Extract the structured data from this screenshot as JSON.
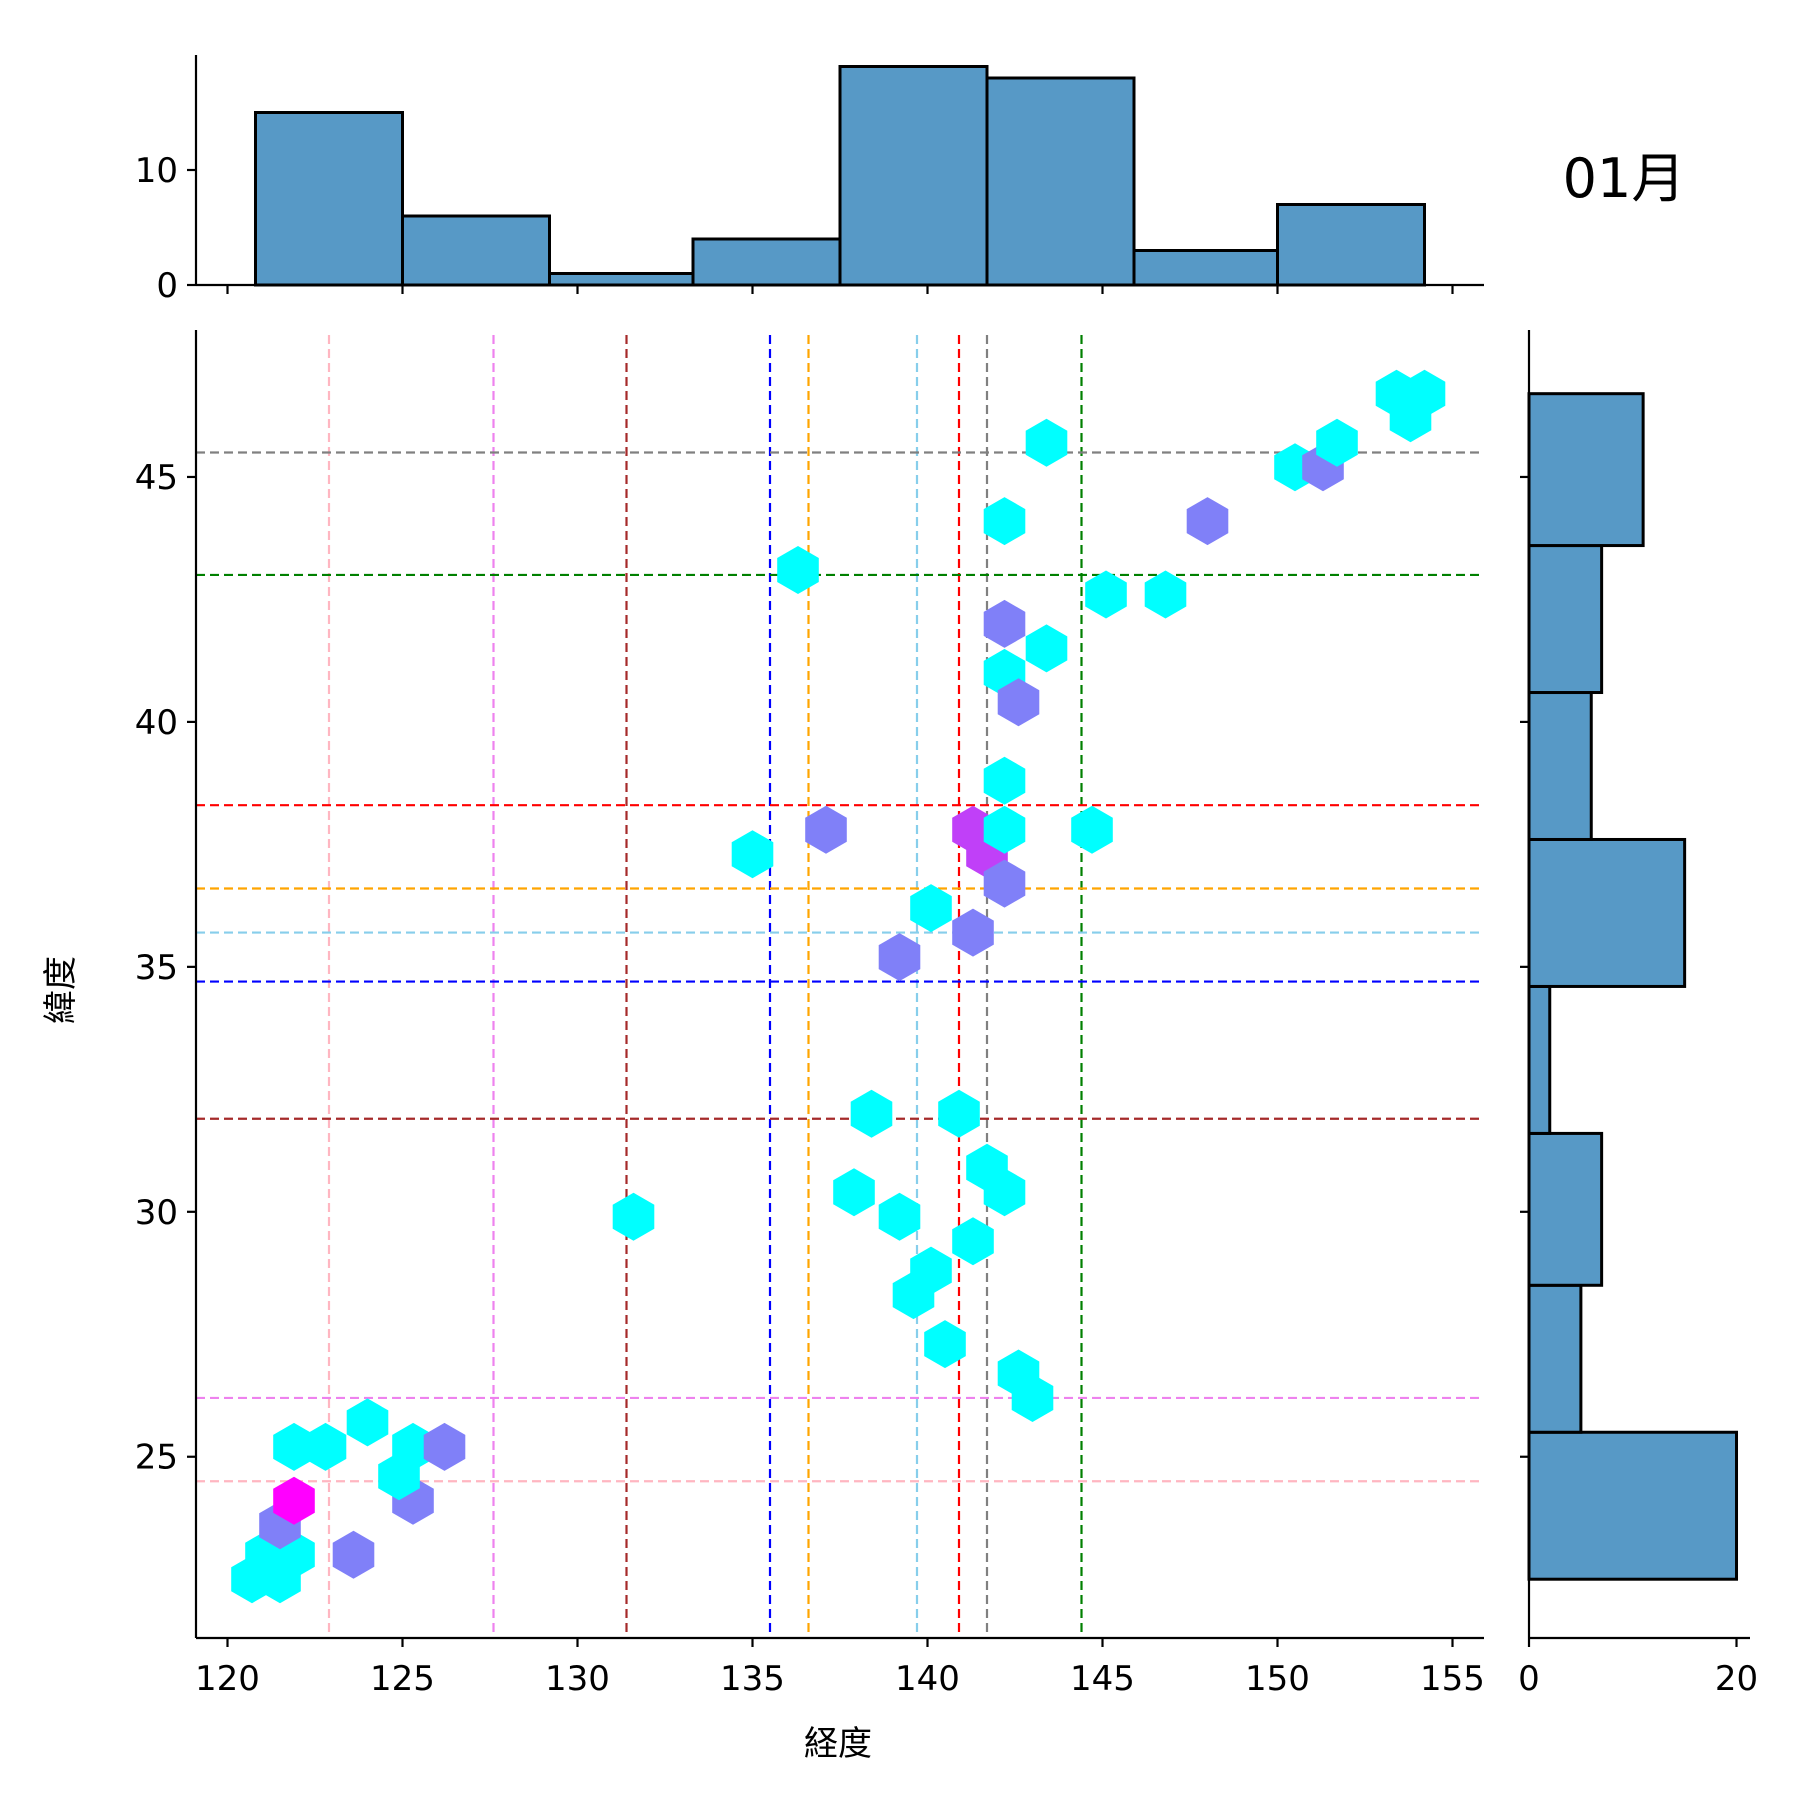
{
  "chart_data": {
    "type": "hexbin-jointplot",
    "title": "01月",
    "xlabel": "経度",
    "ylabel": "緯度",
    "xlim": [
      119.1,
      155.9
    ],
    "ylim": [
      21.3,
      48.0
    ],
    "xticks": [
      120,
      125,
      130,
      135,
      140,
      145,
      150,
      155
    ],
    "yticks": [
      25,
      30,
      35,
      40,
      45
    ],
    "colors": {
      "bar": "#5799c6",
      "hex_1": "#00ffff",
      "hex_2": "#8080f8",
      "hex_3": "#c040f8",
      "hex_4": "#ff00ff"
    },
    "hexbin_points": [
      {
        "x": 120.7,
        "y": 22.5,
        "count": 1
      },
      {
        "x": 121.5,
        "y": 22.5,
        "count": 1
      },
      {
        "x": 121.1,
        "y": 23.0,
        "count": 1
      },
      {
        "x": 121.9,
        "y": 23.0,
        "count": 1
      },
      {
        "x": 121.5,
        "y": 23.6,
        "count": 2
      },
      {
        "x": 121.9,
        "y": 24.1,
        "count": 4
      },
      {
        "x": 123.6,
        "y": 23.0,
        "count": 2
      },
      {
        "x": 125.3,
        "y": 24.1,
        "count": 2
      },
      {
        "x": 124.9,
        "y": 24.6,
        "count": 1
      },
      {
        "x": 125.3,
        "y": 25.2,
        "count": 1
      },
      {
        "x": 121.9,
        "y": 25.2,
        "count": 1
      },
      {
        "x": 122.8,
        "y": 25.2,
        "count": 1
      },
      {
        "x": 124.0,
        "y": 25.7,
        "count": 1
      },
      {
        "x": 126.2,
        "y": 25.2,
        "count": 2
      },
      {
        "x": 131.6,
        "y": 29.9,
        "count": 1
      },
      {
        "x": 135.0,
        "y": 37.3,
        "count": 1
      },
      {
        "x": 136.3,
        "y": 43.1,
        "count": 1
      },
      {
        "x": 137.1,
        "y": 37.8,
        "count": 2
      },
      {
        "x": 138.4,
        "y": 32.0,
        "count": 1
      },
      {
        "x": 137.9,
        "y": 30.4,
        "count": 1
      },
      {
        "x": 139.2,
        "y": 29.9,
        "count": 1
      },
      {
        "x": 139.2,
        "y": 35.2,
        "count": 2
      },
      {
        "x": 139.6,
        "y": 28.3,
        "count": 1
      },
      {
        "x": 140.1,
        "y": 28.8,
        "count": 1
      },
      {
        "x": 140.1,
        "y": 36.2,
        "count": 1
      },
      {
        "x": 140.5,
        "y": 27.3,
        "count": 1
      },
      {
        "x": 140.9,
        "y": 32.0,
        "count": 1
      },
      {
        "x": 141.3,
        "y": 29.4,
        "count": 1
      },
      {
        "x": 141.3,
        "y": 35.7,
        "count": 2
      },
      {
        "x": 141.3,
        "y": 37.8,
        "count": 3
      },
      {
        "x": 141.7,
        "y": 37.3,
        "count": 3
      },
      {
        "x": 141.7,
        "y": 30.9,
        "count": 1
      },
      {
        "x": 142.2,
        "y": 30.4,
        "count": 1
      },
      {
        "x": 142.2,
        "y": 36.7,
        "count": 2
      },
      {
        "x": 142.2,
        "y": 37.8,
        "count": 1
      },
      {
        "x": 142.2,
        "y": 38.8,
        "count": 1
      },
      {
        "x": 142.2,
        "y": 41.0,
        "count": 1
      },
      {
        "x": 142.2,
        "y": 42.0,
        "count": 2
      },
      {
        "x": 142.6,
        "y": 40.4,
        "count": 2
      },
      {
        "x": 142.2,
        "y": 44.1,
        "count": 1
      },
      {
        "x": 142.6,
        "y": 26.7,
        "count": 1
      },
      {
        "x": 143.0,
        "y": 26.2,
        "count": 1
      },
      {
        "x": 143.4,
        "y": 41.5,
        "count": 1
      },
      {
        "x": 143.4,
        "y": 45.7,
        "count": 1
      },
      {
        "x": 144.7,
        "y": 37.8,
        "count": 1
      },
      {
        "x": 145.1,
        "y": 42.6,
        "count": 1
      },
      {
        "x": 146.8,
        "y": 42.6,
        "count": 1
      },
      {
        "x": 148.0,
        "y": 44.1,
        "count": 2
      },
      {
        "x": 150.5,
        "y": 45.2,
        "count": 1
      },
      {
        "x": 151.3,
        "y": 45.2,
        "count": 2
      },
      {
        "x": 151.7,
        "y": 45.7,
        "count": 1
      },
      {
        "x": 153.4,
        "y": 46.7,
        "count": 1
      },
      {
        "x": 153.8,
        "y": 46.2,
        "count": 1
      },
      {
        "x": 154.2,
        "y": 46.7,
        "count": 1
      }
    ],
    "reference_lines": {
      "vertical": [
        {
          "x": 122.9,
          "color": "pink"
        },
        {
          "x": 127.6,
          "color": "violet"
        },
        {
          "x": 131.4,
          "color": "brown"
        },
        {
          "x": 135.5,
          "color": "blue"
        },
        {
          "x": 136.6,
          "color": "orange"
        },
        {
          "x": 139.7,
          "color": "skyblue"
        },
        {
          "x": 140.9,
          "color": "red"
        },
        {
          "x": 141.7,
          "color": "gray"
        },
        {
          "x": 144.4,
          "color": "green"
        }
      ],
      "horizontal": [
        {
          "y": 45.5,
          "color": "gray"
        },
        {
          "y": 43.0,
          "color": "green"
        },
        {
          "y": 38.3,
          "color": "red"
        },
        {
          "y": 36.6,
          "color": "orange"
        },
        {
          "y": 35.7,
          "color": "skyblue"
        },
        {
          "y": 34.7,
          "color": "blue"
        },
        {
          "y": 31.9,
          "color": "brown"
        },
        {
          "y": 26.2,
          "color": "violet"
        },
        {
          "y": 24.5,
          "color": "pink"
        }
      ]
    },
    "x_histogram": {
      "bins": [
        {
          "start": 120.8,
          "end": 125.0,
          "count": 15
        },
        {
          "start": 125.0,
          "end": 129.2,
          "count": 6
        },
        {
          "start": 129.2,
          "end": 133.3,
          "count": 1
        },
        {
          "start": 133.3,
          "end": 137.5,
          "count": 4
        },
        {
          "start": 137.5,
          "end": 141.7,
          "count": 19
        },
        {
          "start": 141.7,
          "end": 145.9,
          "count": 18
        },
        {
          "start": 145.9,
          "end": 150.0,
          "count": 3
        },
        {
          "start": 150.0,
          "end": 154.2,
          "count": 7
        }
      ],
      "yticks": [
        0,
        10
      ],
      "ylim": [
        0,
        20
      ]
    },
    "y_histogram": {
      "bins": [
        {
          "start": 22.5,
          "end": 25.5,
          "count": 20
        },
        {
          "start": 25.5,
          "end": 28.5,
          "count": 5
        },
        {
          "start": 28.5,
          "end": 31.6,
          "count": 7
        },
        {
          "start": 31.6,
          "end": 34.6,
          "count": 2
        },
        {
          "start": 34.6,
          "end": 37.6,
          "count": 15
        },
        {
          "start": 37.6,
          "end": 40.6,
          "count": 6
        },
        {
          "start": 40.6,
          "end": 43.6,
          "count": 7
        },
        {
          "start": 43.6,
          "end": 46.7,
          "count": 11
        }
      ],
      "xticks": [
        0,
        20
      ],
      "xlim": [
        0,
        21.3
      ]
    }
  }
}
